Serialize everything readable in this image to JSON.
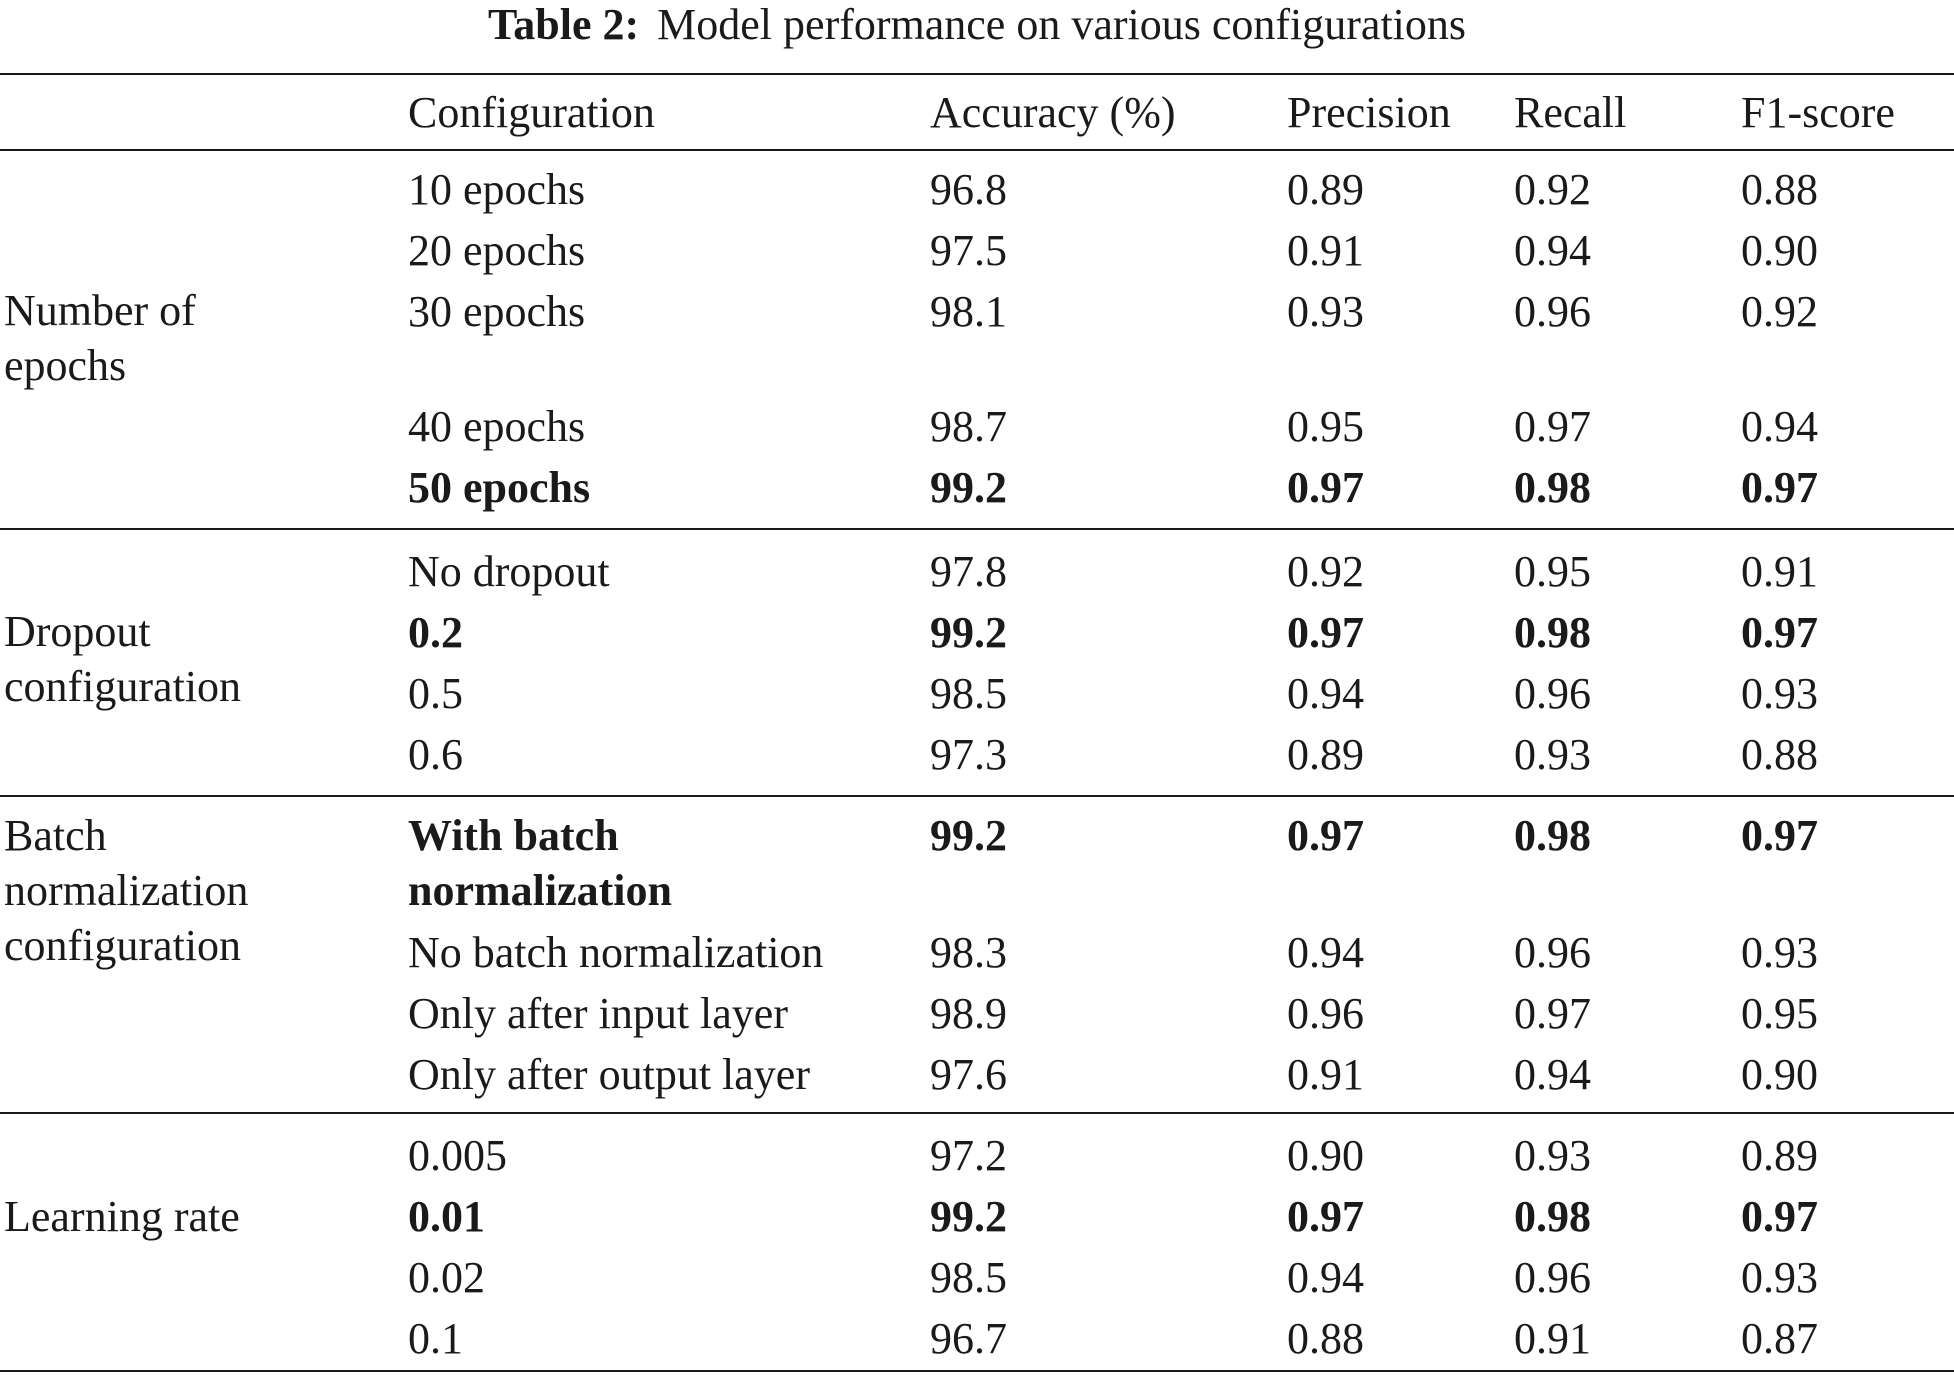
{
  "caption": {
    "label": "Table 2:",
    "text": "Model performance on various configurations"
  },
  "columns": [
    "",
    "Configuration",
    "Accuracy (%)",
    "Precision",
    "Recall",
    "F1-score"
  ],
  "groups": [
    {
      "name": "Number of epochs",
      "rows": [
        {
          "config": "10 epochs",
          "accuracy": "96.8",
          "precision": "0.89",
          "recall": "0.92",
          "f1": "0.88",
          "bold": false
        },
        {
          "config": "20 epochs",
          "accuracy": "97.5",
          "precision": "0.91",
          "recall": "0.94",
          "f1": "0.90",
          "bold": false
        },
        {
          "config": "30 epochs",
          "accuracy": "98.1",
          "precision": "0.93",
          "recall": "0.96",
          "f1": "0.92",
          "bold": false
        },
        {
          "config": "40 epochs",
          "accuracy": "98.7",
          "precision": "0.95",
          "recall": "0.97",
          "f1": "0.94",
          "bold": false
        },
        {
          "config": "50 epochs",
          "accuracy": "99.2",
          "precision": "0.97",
          "recall": "0.98",
          "f1": "0.97",
          "bold": true
        }
      ]
    },
    {
      "name": "Dropout configuration",
      "rows": [
        {
          "config": "No dropout",
          "accuracy": "97.8",
          "precision": "0.92",
          "recall": "0.95",
          "f1": "0.91",
          "bold": false
        },
        {
          "config": "0.2",
          "accuracy": "99.2",
          "precision": "0.97",
          "recall": "0.98",
          "f1": "0.97",
          "bold": true
        },
        {
          "config": "0.5",
          "accuracy": "98.5",
          "precision": "0.94",
          "recall": "0.96",
          "f1": "0.93",
          "bold": false
        },
        {
          "config": "0.6",
          "accuracy": "97.3",
          "precision": "0.89",
          "recall": "0.93",
          "f1": "0.88",
          "bold": false
        }
      ]
    },
    {
      "name": "Batch normalization configuration",
      "rows": [
        {
          "config": "With batch normalization",
          "accuracy": "99.2",
          "precision": "0.97",
          "recall": "0.98",
          "f1": "0.97",
          "bold": true
        },
        {
          "config": "No batch normalization",
          "accuracy": "98.3",
          "precision": "0.94",
          "recall": "0.96",
          "f1": "0.93",
          "bold": false
        },
        {
          "config": "Only after input layer",
          "accuracy": "98.9",
          "precision": "0.96",
          "recall": "0.97",
          "f1": "0.95",
          "bold": false
        },
        {
          "config": "Only after output layer",
          "accuracy": "97.6",
          "precision": "0.91",
          "recall": "0.94",
          "f1": "0.90",
          "bold": false
        }
      ]
    },
    {
      "name": "Learning rate",
      "rows": [
        {
          "config": "0.005",
          "accuracy": "97.2",
          "precision": "0.90",
          "recall": "0.93",
          "f1": "0.89",
          "bold": false
        },
        {
          "config": "0.01",
          "accuracy": "99.2",
          "precision": "0.97",
          "recall": "0.98",
          "f1": "0.97",
          "bold": true
        },
        {
          "config": "0.02",
          "accuracy": "98.5",
          "precision": "0.94",
          "recall": "0.96",
          "f1": "0.93",
          "bold": false
        },
        {
          "config": "0.1",
          "accuracy": "96.7",
          "precision": "0.88",
          "recall": "0.91",
          "f1": "0.87",
          "bold": false
        }
      ]
    }
  ]
}
